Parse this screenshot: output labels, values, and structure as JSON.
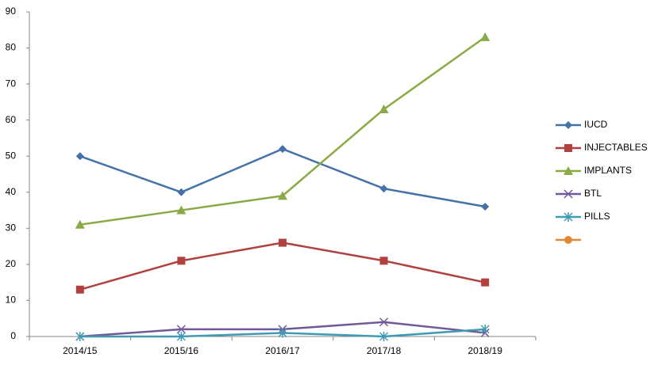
{
  "chart_data": {
    "type": "line",
    "categories": [
      "2014/15",
      "2015/16",
      "2016/17",
      "2017/18",
      "2018/19"
    ],
    "series": [
      {
        "name": "IUCD",
        "color": "#4472a8",
        "marker": "diamond",
        "values": [
          50,
          40,
          52,
          41,
          36
        ]
      },
      {
        "name": "INJECTABLES",
        "color": "#b0413e",
        "marker": "square",
        "values": [
          13,
          21,
          26,
          21,
          15
        ]
      },
      {
        "name": "IMPLANTS",
        "color": "#8aaa46",
        "marker": "triangle",
        "values": [
          31,
          35,
          39,
          63,
          83
        ]
      },
      {
        "name": "BTL",
        "color": "#71589a",
        "marker": "x",
        "values": [
          0,
          2,
          2,
          4,
          1
        ]
      },
      {
        "name": "PILLS",
        "color": "#3f9bb2",
        "marker": "star",
        "values": [
          0,
          0,
          1,
          0,
          2
        ]
      },
      {
        "color": "#e08a35",
        "marker": "circle",
        "values": [
          null,
          null,
          null,
          null,
          null
        ]
      }
    ],
    "ylim": [
      0,
      90
    ],
    "yticks": [
      0,
      10,
      20,
      30,
      40,
      50,
      60,
      70,
      80,
      90
    ],
    "grid": false,
    "legend": "right"
  }
}
